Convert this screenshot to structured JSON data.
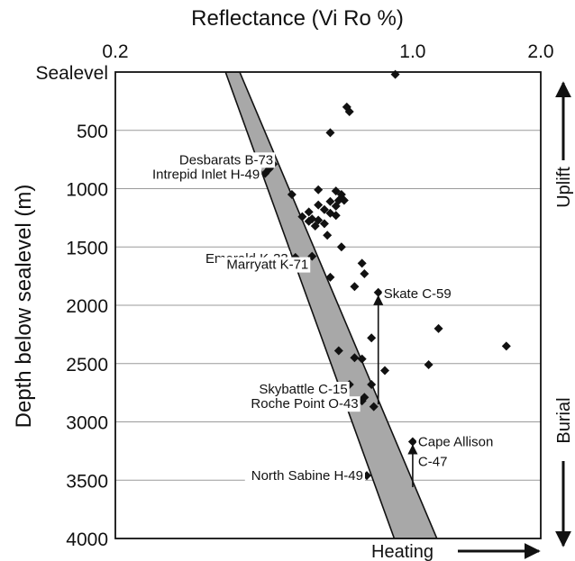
{
  "chart_data": {
    "type": "scatter",
    "x_label": "Reflectance (Vi Ro %)",
    "y_label": "Depth below sealevel (m)",
    "x_scale": "log",
    "x_lim": [
      0.2,
      2.0
    ],
    "y_lim": [
      0,
      4000
    ],
    "y_inverted": true,
    "grid": "horizontal",
    "x_ticks": [
      {
        "value": 0.2,
        "label": "0.2"
      },
      {
        "value": 1.0,
        "label": "1.0"
      },
      {
        "value": 2.0,
        "label": "2.0"
      }
    ],
    "y_ticks": [
      {
        "value": 0,
        "label": "Sealevel"
      },
      {
        "value": 500,
        "label": "500"
      },
      {
        "value": 1000,
        "label": "1000"
      },
      {
        "value": 1500,
        "label": "1500"
      },
      {
        "value": 2000,
        "label": "2000"
      },
      {
        "value": 2500,
        "label": "2500"
      },
      {
        "value": 3000,
        "label": "3000"
      },
      {
        "value": 3500,
        "label": "3500"
      },
      {
        "value": 4000,
        "label": "4000"
      }
    ],
    "points": [
      [
        0.91,
        20
      ],
      [
        0.7,
        300
      ],
      [
        0.71,
        340
      ],
      [
        0.64,
        520
      ],
      [
        0.47,
        790
      ],
      [
        0.46,
        830
      ],
      [
        0.45,
        870
      ],
      [
        0.52,
        1050
      ],
      [
        0.6,
        1010
      ],
      [
        0.66,
        1020
      ],
      [
        0.68,
        1050
      ],
      [
        0.67,
        1100
      ],
      [
        0.64,
        1110
      ],
      [
        0.66,
        1150
      ],
      [
        0.69,
        1100
      ],
      [
        0.62,
        1180
      ],
      [
        0.6,
        1140
      ],
      [
        0.57,
        1200
      ],
      [
        0.64,
        1210
      ],
      [
        0.66,
        1230
      ],
      [
        0.55,
        1240
      ],
      [
        0.58,
        1260
      ],
      [
        0.6,
        1270
      ],
      [
        0.62,
        1300
      ],
      [
        0.59,
        1320
      ],
      [
        0.57,
        1280
      ],
      [
        0.63,
        1400
      ],
      [
        0.68,
        1500
      ],
      [
        0.53,
        1590
      ],
      [
        0.58,
        1580
      ],
      [
        0.76,
        1640
      ],
      [
        0.77,
        1730
      ],
      [
        0.64,
        1760
      ],
      [
        0.73,
        1840
      ],
      [
        0.83,
        1890
      ],
      [
        1.15,
        2200
      ],
      [
        1.66,
        2350
      ],
      [
        0.8,
        2280
      ],
      [
        0.67,
        2390
      ],
      [
        0.73,
        2450
      ],
      [
        0.76,
        2460
      ],
      [
        0.86,
        2560
      ],
      [
        1.09,
        2510
      ],
      [
        0.71,
        2680
      ],
      [
        0.8,
        2680
      ],
      [
        0.77,
        2790
      ],
      [
        0.76,
        2820
      ],
      [
        0.81,
        2870
      ],
      [
        1.0,
        3170
      ],
      [
        0.78,
        3460
      ]
    ],
    "band": {
      "left_edge": [
        [
          0.363,
          0
        ],
        [
          0.905,
          4000
        ]
      ],
      "right_edge": [
        [
          0.392,
          0
        ],
        [
          1.14,
          4000
        ]
      ]
    },
    "annotations": [
      {
        "text": "Desbarats B-73",
        "x": 0.47,
        "y": 790
      },
      {
        "text": "Intrepid Inlet H-49",
        "x": 0.45,
        "y": 870
      },
      {
        "text": "Emerald K-33",
        "x": 0.53,
        "y": 1590
      },
      {
        "text": "Marryatt K-71",
        "x": 0.58,
        "y": 1580
      },
      {
        "text": "Skate C-59",
        "x": 0.83,
        "y": 1890
      },
      {
        "text": "Skybattle C-15",
        "x": 0.71,
        "y": 2680
      },
      {
        "text": "Roche Point O-43",
        "x": 0.76,
        "y": 2820
      },
      {
        "text": "Cape Allison",
        "x": 1.0,
        "y": 3170
      },
      {
        "text": "C-47",
        "x": 1.0,
        "y": 3170
      },
      {
        "text": "North Sabine H-49",
        "x": 0.78,
        "y": 3460
      }
    ],
    "offset_arrows": [
      {
        "from": [
          0.83,
          2850
        ],
        "to": [
          0.83,
          1890
        ]
      },
      {
        "from": [
          1.0,
          3560
        ],
        "to": [
          1.0,
          3170
        ]
      }
    ],
    "side_labels": {
      "top": "Uplift",
      "bottom": "Burial",
      "heating": "Heating"
    }
  }
}
